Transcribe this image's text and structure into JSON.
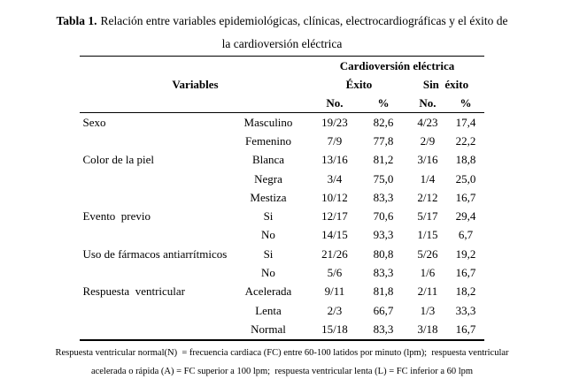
{
  "title": {
    "bold": "Tabla 1.",
    "line1_rest": "Relación entre variables epidemiológicas, clínicas, electrocardiográficas y el éxito de",
    "line2": "la cardioversión eléctrica"
  },
  "table": {
    "group_header": "Cardioversión eléctrica",
    "variables_header": "Variables",
    "exito_header": "Éxito",
    "sin_exito_header": "Sin  éxito",
    "no_label": "No.",
    "pct_label": "%",
    "rows": [
      {
        "variable": "Sexo",
        "category": "Masculino",
        "no1": "19/23",
        "pct1": "82,6",
        "no2": "4/23",
        "pct2": "17,4"
      },
      {
        "variable": "",
        "category": "Femenino",
        "no1": "7/9",
        "pct1": "77,8",
        "no2": "2/9",
        "pct2": "22,2"
      },
      {
        "variable": "Color de la piel",
        "category": "Blanca",
        "no1": "13/16",
        "pct1": "81,2",
        "no2": "3/16",
        "pct2": "18,8"
      },
      {
        "variable": "",
        "category": "Negra",
        "no1": "3/4",
        "pct1": "75,0",
        "no2": "1/4",
        "pct2": "25,0"
      },
      {
        "variable": "",
        "category": "Mestiza",
        "no1": "10/12",
        "pct1": "83,3",
        "no2": "2/12",
        "pct2": "16,7"
      },
      {
        "variable": "Evento  previo",
        "category": "Si",
        "no1": "12/17",
        "pct1": "70,6",
        "no2": "5/17",
        "pct2": "29,4"
      },
      {
        "variable": "",
        "category": "No",
        "no1": "14/15",
        "pct1": "93,3",
        "no2": "1/15",
        "pct2": "6,7"
      },
      {
        "variable": "Uso de fármacos antiarrítmicos",
        "category": "Si",
        "no1": "21/26",
        "pct1": "80,8",
        "no2": "5/26",
        "pct2": "19,2"
      },
      {
        "variable": "",
        "category": "No",
        "no1": "5/6",
        "pct1": "83,3",
        "no2": "1/6",
        "pct2": "16,7"
      },
      {
        "variable": "Respuesta  ventricular",
        "category": "Acelerada",
        "no1": "9/11",
        "pct1": "81,8",
        "no2": "2/11",
        "pct2": "18,2"
      },
      {
        "variable": "",
        "category": "Lenta",
        "no1": "2/3",
        "pct1": "66,7",
        "no2": "1/3",
        "pct2": "33,3"
      },
      {
        "variable": "",
        "category": "Normal",
        "no1": "15/18",
        "pct1": "83,3",
        "no2": "3/18",
        "pct2": "16,7"
      }
    ]
  },
  "footnote": {
    "line1": "Respuesta ventricular normal(N)  = frecuencia cardiaca (FC) entre 60-100 latidos por minuto (lpm);  respuesta ventricular",
    "line2": "acelerada o rápida (A) = FC superior a 100 lpm;  respuesta ventricular lenta (L) = FC inferior a 60 lpm"
  }
}
